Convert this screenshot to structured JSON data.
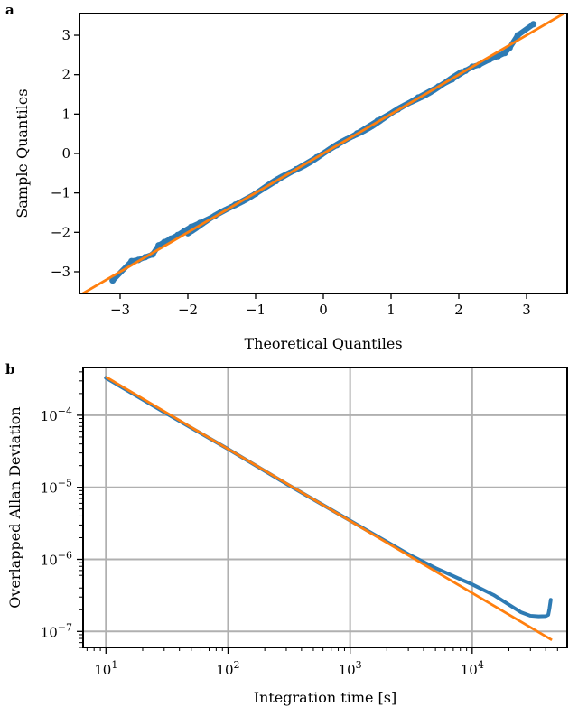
{
  "colors": {
    "points": "#2e7bb4",
    "fit": "#ff7f0e",
    "grid": "#b0b0b0",
    "frame": "#000000"
  },
  "chart_data": [
    {
      "panel": "a",
      "type": "scatter",
      "title": "",
      "xlabel": "Theoretical Quantiles",
      "ylabel": "Sample Quantiles",
      "xlim": [
        -3.6,
        3.6
      ],
      "ylim": [
        -3.55,
        3.55
      ],
      "grid": false,
      "xticks": [
        {
          "v": -3,
          "label": "−3"
        },
        {
          "v": -2,
          "label": "−2"
        },
        {
          "v": -1,
          "label": "−1"
        },
        {
          "v": 0,
          "label": "0"
        },
        {
          "v": 1,
          "label": "1"
        },
        {
          "v": 2,
          "label": "2"
        },
        {
          "v": 3,
          "label": "3"
        }
      ],
      "yticks": [
        {
          "v": -3,
          "label": "−3"
        },
        {
          "v": -2,
          "label": "−2"
        },
        {
          "v": -1,
          "label": "−1"
        },
        {
          "v": 0,
          "label": "0"
        },
        {
          "v": 1,
          "label": "1"
        },
        {
          "v": 2,
          "label": "2"
        },
        {
          "v": 3,
          "label": "3"
        }
      ],
      "reference_line": {
        "slope": 1,
        "intercept": 0
      },
      "points": [
        [
          -3.11,
          -3.22
        ],
        [
          -2.83,
          -2.73
        ],
        [
          -2.73,
          -2.7
        ],
        [
          -2.63,
          -2.63
        ],
        [
          -2.52,
          -2.56
        ],
        [
          -2.43,
          -2.33
        ],
        [
          -2.35,
          -2.25
        ],
        [
          -2.25,
          -2.16
        ],
        [
          -2.15,
          -2.07
        ],
        [
          -2.05,
          -1.96
        ],
        [
          -1.95,
          -1.86
        ],
        [
          -1.82,
          -1.76
        ],
        [
          -1.6,
          -1.58
        ],
        [
          -1.3,
          -1.3
        ],
        [
          -1.0,
          -1.02
        ],
        [
          -0.7,
          -0.7
        ],
        [
          -0.4,
          -0.4
        ],
        [
          -0.1,
          -0.1
        ],
        [
          0.2,
          0.21
        ],
        [
          0.5,
          0.51
        ],
        [
          0.8,
          0.83
        ],
        [
          1.1,
          1.12
        ],
        [
          1.4,
          1.42
        ],
        [
          1.7,
          1.7
        ],
        [
          1.9,
          1.88
        ],
        [
          2.1,
          2.1
        ],
        [
          2.2,
          2.2
        ],
        [
          2.3,
          2.25
        ],
        [
          2.45,
          2.38
        ],
        [
          2.58,
          2.47
        ],
        [
          2.68,
          2.55
        ],
        [
          2.75,
          2.68
        ],
        [
          2.87,
          3.0
        ],
        [
          3.1,
          3.28
        ]
      ]
    },
    {
      "panel": "b",
      "type": "line",
      "title": "",
      "xlabel": "Integration time [s]",
      "ylabel": "Overlapped Allan Deviation",
      "xscale": "log",
      "yscale": "log",
      "xlim": [
        6.5,
        60000
      ],
      "ylim": [
        6e-08,
        0.00046
      ],
      "grid": true,
      "xticks": [
        {
          "v": 10,
          "base": "10",
          "exp": "1"
        },
        {
          "v": 100,
          "base": "10",
          "exp": "2"
        },
        {
          "v": 1000,
          "base": "10",
          "exp": "3"
        },
        {
          "v": 10000,
          "base": "10",
          "exp": "4"
        }
      ],
      "yticks": [
        {
          "v": 1e-07,
          "base": "10",
          "exp": "−7"
        },
        {
          "v": 1e-06,
          "base": "10",
          "exp": "−6"
        },
        {
          "v": 1e-05,
          "base": "10",
          "exp": "−5"
        },
        {
          "v": 0.0001,
          "base": "10",
          "exp": "−4"
        }
      ],
      "series": [
        {
          "type": "line",
          "x": [
            10,
            30,
            100,
            300,
            1000,
            3000,
            5000,
            8000,
            10000,
            15000,
            20000,
            25000,
            30000,
            35000,
            40000,
            42000,
            43000,
            44000
          ],
          "y": [
            0.00033,
            0.00011,
            3.4e-05,
            1.12e-05,
            3.45e-06,
            1.18e-06,
            7.6e-07,
            5.3e-07,
            4.5e-07,
            3.2e-07,
            2.35e-07,
            1.85e-07,
            1.65e-07,
            1.62e-07,
            1.63e-07,
            1.7e-07,
            2.1e-07,
            2.75e-07
          ]
        },
        {
          "type": "fit",
          "x": [
            10,
            45000
          ],
          "y": [
            0.00034,
            7.6e-08
          ]
        }
      ]
    }
  ]
}
